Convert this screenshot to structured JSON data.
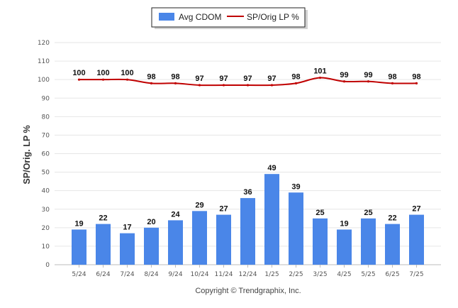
{
  "chart_data": {
    "type": "bar",
    "categories": [
      "5/24",
      "6/24",
      "7/24",
      "8/24",
      "9/24",
      "10/24",
      "11/24",
      "12/24",
      "1/25",
      "2/25",
      "3/25",
      "4/25",
      "5/25",
      "6/25",
      "7/25"
    ],
    "series": [
      {
        "name": "Avg CDOM",
        "type": "bar",
        "color": "#4a86e8",
        "values": [
          19,
          22,
          17,
          20,
          24,
          29,
          27,
          36,
          49,
          39,
          25,
          19,
          25,
          22,
          27
        ]
      },
      {
        "name": "SP/Orig LP %",
        "type": "line",
        "color": "#c00000",
        "values": [
          100,
          100,
          100,
          98,
          98,
          97,
          97,
          97,
          97,
          98,
          101,
          99,
          99,
          98,
          98
        ]
      }
    ],
    "ylabel": "SP/Orig. LP %",
    "xlabel": "",
    "ylim": [
      0,
      120
    ],
    "yticks": [
      0,
      10,
      20,
      30,
      40,
      50,
      60,
      70,
      80,
      90,
      100,
      110,
      120
    ],
    "grid": true,
    "legend_position": "top-center"
  },
  "footer": {
    "copyright": "Copyright © Trendgraphix, Inc."
  }
}
